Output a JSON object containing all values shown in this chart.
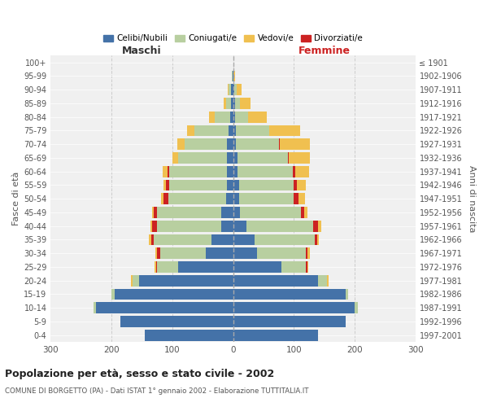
{
  "age_groups": [
    "0-4",
    "5-9",
    "10-14",
    "15-19",
    "20-24",
    "25-29",
    "30-34",
    "35-39",
    "40-44",
    "45-49",
    "50-54",
    "55-59",
    "60-64",
    "65-69",
    "70-74",
    "75-79",
    "80-84",
    "85-89",
    "90-94",
    "95-99",
    "100+"
  ],
  "birth_years": [
    "1997-2001",
    "1992-1996",
    "1987-1991",
    "1982-1986",
    "1977-1981",
    "1972-1976",
    "1967-1971",
    "1962-1966",
    "1957-1961",
    "1952-1956",
    "1947-1951",
    "1942-1946",
    "1937-1941",
    "1932-1936",
    "1927-1931",
    "1922-1926",
    "1917-1921",
    "1912-1916",
    "1907-1911",
    "1902-1906",
    "≤ 1901"
  ],
  "maschi": {
    "celibi": [
      145,
      185,
      225,
      195,
      155,
      90,
      45,
      35,
      20,
      20,
      12,
      10,
      10,
      10,
      10,
      8,
      5,
      3,
      3,
      1,
      0
    ],
    "coniugati": [
      0,
      0,
      5,
      5,
      10,
      35,
      75,
      95,
      105,
      105,
      95,
      95,
      95,
      80,
      70,
      55,
      25,
      8,
      4,
      1,
      0
    ],
    "vedovi": [
      0,
      0,
      0,
      0,
      3,
      2,
      3,
      3,
      3,
      3,
      3,
      5,
      8,
      10,
      12,
      12,
      10,
      5,
      2,
      0,
      0
    ],
    "divorziati": [
      0,
      0,
      0,
      0,
      0,
      2,
      5,
      5,
      8,
      5,
      8,
      5,
      3,
      0,
      0,
      0,
      0,
      0,
      0,
      0,
      0
    ]
  },
  "femmine": {
    "nubili": [
      140,
      185,
      200,
      185,
      140,
      80,
      40,
      35,
      22,
      12,
      10,
      10,
      8,
      8,
      5,
      5,
      3,
      3,
      2,
      0,
      0
    ],
    "coniugate": [
      0,
      0,
      5,
      5,
      15,
      40,
      80,
      100,
      110,
      100,
      90,
      90,
      90,
      82,
      70,
      55,
      22,
      8,
      4,
      1,
      0
    ],
    "vedove": [
      0,
      0,
      0,
      0,
      2,
      2,
      3,
      3,
      5,
      5,
      10,
      15,
      22,
      35,
      50,
      50,
      30,
      18,
      8,
      2,
      0
    ],
    "divorziate": [
      0,
      0,
      0,
      0,
      0,
      2,
      3,
      3,
      8,
      5,
      8,
      5,
      5,
      2,
      2,
      0,
      0,
      0,
      0,
      0,
      0
    ]
  },
  "colors": {
    "celibi_nubili": "#4472a8",
    "coniugati": "#b8cfa0",
    "vedovi": "#f0c050",
    "divorziati": "#cc2222"
  },
  "xlim": 300,
  "title": "Popolazione per età, sesso e stato civile - 2002",
  "subtitle": "COMUNE DI BORGETTO (PA) - Dati ISTAT 1° gennaio 2002 - Elaborazione TUTTITALIA.IT",
  "ylabel_left": "Fasce di età",
  "ylabel_right": "Anni di nascita",
  "xlabel_maschi": "Maschi",
  "xlabel_femmine": "Femmine",
  "legend_labels": [
    "Celibi/Nubili",
    "Coniugati/e",
    "Vedovi/e",
    "Divorziati/e"
  ],
  "background_color": "#ffffff",
  "plot_bg_color": "#f0f0f0",
  "grid_color": "#cccccc"
}
